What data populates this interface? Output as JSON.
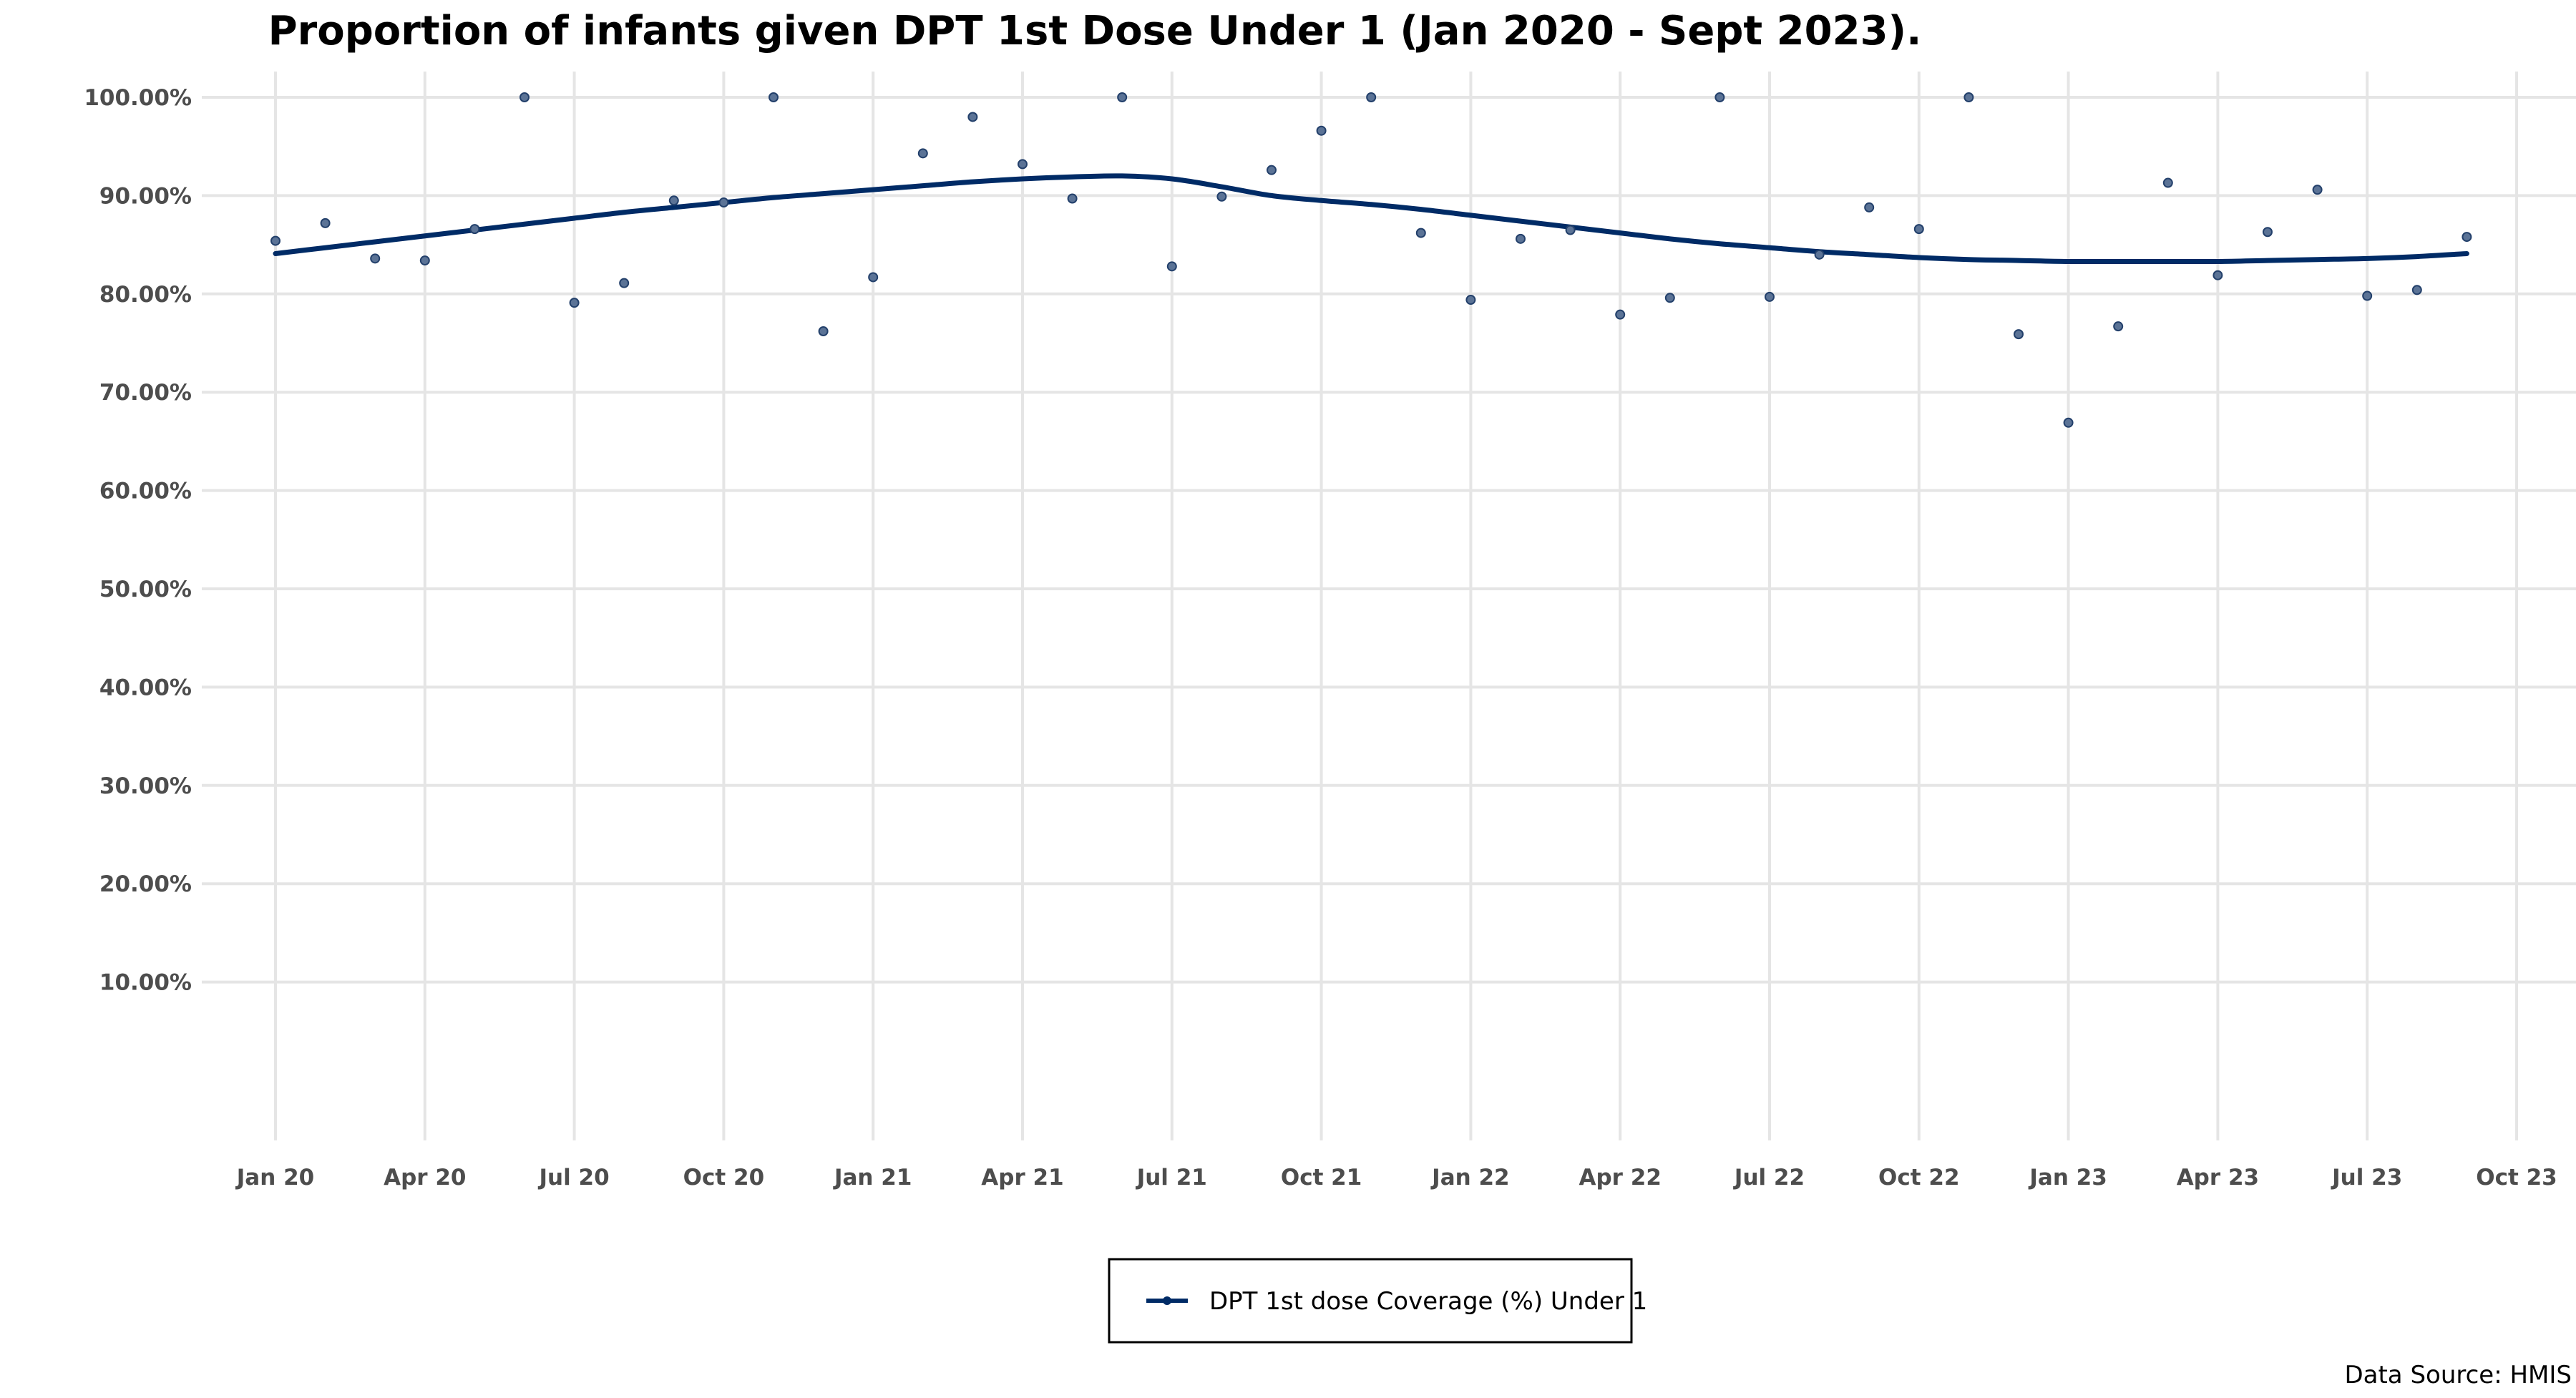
{
  "chart_data": {
    "type": "line",
    "title": "Proportion of infants given DPT 1st Dose Under 1 (Jan 2020 - Sept 2023).",
    "xlabel": "",
    "ylabel": "",
    "ylim": [
      0,
      100
    ],
    "y_ticks": [
      "10.00%",
      "20.00%",
      "30.00%",
      "40.00%",
      "50.00%",
      "60.00%",
      "70.00%",
      "80.00%",
      "90.00%",
      "100.00%"
    ],
    "x_ticks": [
      "Jan 20",
      "Apr 20",
      "Jul 20",
      "Oct 20",
      "Jan 21",
      "Apr 21",
      "Jul 21",
      "Oct 21",
      "Jan 22",
      "Apr 22",
      "Jul 22",
      "Oct 22",
      "Jan 23",
      "Apr 23",
      "Jul 23",
      "Oct 23"
    ],
    "grid": true,
    "legend_position": "bottom",
    "series": [
      {
        "name": "DPT 1st dose Coverage (%) Under 1",
        "color": "#002B66",
        "months": [
          "2020-01",
          "2020-02",
          "2020-03",
          "2020-04",
          "2020-05",
          "2020-06",
          "2020-07",
          "2020-08",
          "2020-09",
          "2020-10",
          "2020-11",
          "2020-12",
          "2021-01",
          "2021-02",
          "2021-03",
          "2021-04",
          "2021-05",
          "2021-06",
          "2021-07",
          "2021-08",
          "2021-09",
          "2021-10",
          "2021-11",
          "2021-12",
          "2022-01",
          "2022-02",
          "2022-03",
          "2022-04",
          "2022-05",
          "2022-06",
          "2022-07",
          "2022-08",
          "2022-09",
          "2022-10",
          "2022-11",
          "2022-12",
          "2023-01",
          "2023-02",
          "2023-03",
          "2023-04",
          "2023-05",
          "2023-06",
          "2023-07",
          "2023-08",
          "2023-09"
        ],
        "points": [
          85.4,
          87.2,
          83.6,
          83.4,
          86.6,
          100.0,
          79.1,
          81.1,
          89.5,
          89.3,
          100.0,
          76.2,
          81.7,
          94.3,
          98.0,
          93.2,
          89.7,
          100.0,
          82.8,
          89.9,
          92.6,
          96.6,
          100.0,
          86.2,
          79.4,
          85.6,
          86.5,
          77.9,
          79.6,
          100.0,
          79.7,
          84.0,
          88.8,
          86.6,
          100.0,
          75.9,
          66.9,
          76.7,
          91.3,
          81.9,
          86.3,
          90.6,
          79.8,
          80.4,
          85.8
        ],
        "trend": [
          84.1,
          84.7,
          85.3,
          85.9,
          86.5,
          87.1,
          87.7,
          88.3,
          88.8,
          89.3,
          89.8,
          90.2,
          90.6,
          91.0,
          91.4,
          91.7,
          91.9,
          92.0,
          91.7,
          90.9,
          90.0,
          89.5,
          89.1,
          88.6,
          88.0,
          87.4,
          86.8,
          86.2,
          85.6,
          85.1,
          84.7,
          84.3,
          84.0,
          83.7,
          83.5,
          83.4,
          83.3,
          83.3,
          83.3,
          83.3,
          83.4,
          83.5,
          83.6,
          83.8,
          84.1
        ]
      }
    ],
    "source": "Data Source: HMIS"
  }
}
